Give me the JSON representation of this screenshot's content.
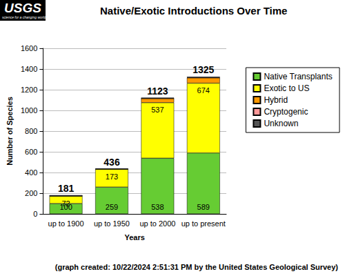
{
  "chart_data": {
    "type": "bar",
    "title": "Native/Exotic Introductions Over Time",
    "x_label": "Years",
    "y_label": "Number of Species",
    "categories": [
      "up to 1900",
      "up to 1950",
      "up to 2000",
      "up to present"
    ],
    "series": [
      {
        "name": "Native Transplants",
        "color": "#66cc33",
        "values": [
          100,
          259,
          538,
          589
        ],
        "data_labels": true
      },
      {
        "name": "Exotic to US",
        "color": "#ffff00",
        "values": [
          72,
          173,
          537,
          674
        ],
        "data_labels": true
      },
      {
        "name": "Hybrid",
        "color": "#ff9900",
        "values": [
          2,
          2,
          40,
          52
        ]
      },
      {
        "name": "Cryptogenic",
        "color": "#ff9999",
        "values": [
          0,
          0,
          1,
          2
        ]
      },
      {
        "name": "Unknown",
        "color": "#555555",
        "values": [
          7,
          2,
          7,
          8
        ]
      }
    ],
    "totals": [
      181,
      436,
      1123,
      1325
    ],
    "stacked": true,
    "ylim": [
      0,
      1600
    ],
    "yticks": [
      0,
      200,
      400,
      600,
      800,
      1000,
      1200,
      1400,
      1600
    ],
    "grid": true,
    "legend": "right",
    "annotations": [
      "USGS",
      "science for a changing world",
      "(graph created: 10/22/2024 2:51:31 PM by the United States Geological Survey)"
    ]
  }
}
